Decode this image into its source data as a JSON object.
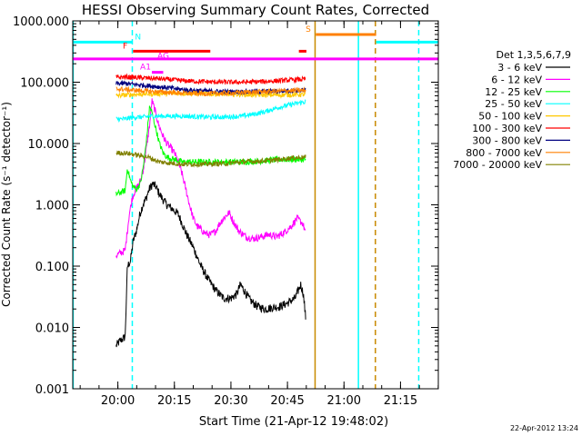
{
  "chart_data": {
    "type": "line",
    "title": "HESSI Observing Summary Count Rates, Corrected",
    "xlabel": "Start Time (21-Apr-12 19:48:02)",
    "ylabel": "Corrected Count Rate (s⁻¹ detector⁻¹)",
    "y_scale": "log",
    "ylim": [
      0.001,
      1000
    ],
    "y_ticks": [
      0.001,
      0.01,
      0.1,
      1,
      10,
      100,
      1000
    ],
    "y_tick_labels": [
      "0.001",
      "0.010",
      "0.100",
      "1.000",
      "10.000",
      "100.000",
      "1000.000"
    ],
    "x_unit": "minutes after 19:48:02",
    "xlim": [
      0,
      97
    ],
    "x_ticks": [
      11.97,
      26.97,
      41.97,
      56.97,
      71.97,
      86.97
    ],
    "x_tick_labels": [
      "20:00",
      "20:15",
      "20:30",
      "20:45",
      "21:00",
      "21:15"
    ],
    "legend_title": "Det 1,3,5,6,7,9",
    "legend_position": "right",
    "data_start": 11.5,
    "data_end": 61.8,
    "series": [
      {
        "name": "3 - 6 keV",
        "color": "#000000",
        "points": [
          [
            11.5,
            0.005
          ],
          [
            12.5,
            0.006
          ],
          [
            13.9,
            0.007
          ],
          [
            14.5,
            0.1
          ],
          [
            15.3,
            0.12
          ],
          [
            16,
            0.25
          ],
          [
            17,
            0.4
          ],
          [
            17.8,
            0.7
          ],
          [
            18.6,
            1.0
          ],
          [
            19.5,
            1.3
          ],
          [
            20.3,
            1.8
          ],
          [
            21.2,
            2.2
          ],
          [
            22,
            2.0
          ],
          [
            23,
            1.5
          ],
          [
            24,
            1.2
          ],
          [
            25,
            1.0
          ],
          [
            26,
            0.9
          ],
          [
            27,
            0.8
          ],
          [
            28,
            0.7
          ],
          [
            29,
            0.5
          ],
          [
            30,
            0.35
          ],
          [
            32,
            0.2
          ],
          [
            34,
            0.1
          ],
          [
            36,
            0.06
          ],
          [
            38,
            0.04
          ],
          [
            40,
            0.03
          ],
          [
            42,
            0.03
          ],
          [
            43.5,
            0.035
          ],
          [
            44.5,
            0.05
          ],
          [
            45.5,
            0.04
          ],
          [
            47,
            0.028
          ],
          [
            49,
            0.022
          ],
          [
            51,
            0.02
          ],
          [
            53,
            0.021
          ],
          [
            55,
            0.022
          ],
          [
            57,
            0.025
          ],
          [
            59,
            0.03
          ],
          [
            60.5,
            0.05
          ],
          [
            61.2,
            0.035
          ],
          [
            61.8,
            0.014
          ]
        ]
      },
      {
        "name": "6 - 12 keV",
        "color": "#ff00ff",
        "points": [
          [
            11.5,
            0.15
          ],
          [
            13.9,
            0.18
          ],
          [
            14.3,
            0.3
          ],
          [
            15,
            0.7
          ],
          [
            15.8,
            1.3
          ],
          [
            16.5,
            1.7
          ],
          [
            17.2,
            2.0
          ],
          [
            18,
            2.5
          ],
          [
            18.8,
            4
          ],
          [
            19.6,
            9
          ],
          [
            20.4,
            20
          ],
          [
            21,
            50
          ],
          [
            21.8,
            35
          ],
          [
            22.8,
            20
          ],
          [
            24,
            13
          ],
          [
            25,
            10
          ],
          [
            26,
            8.5
          ],
          [
            27,
            7
          ],
          [
            28,
            5
          ],
          [
            29,
            3.2
          ],
          [
            30,
            1.8
          ],
          [
            31,
            1.0
          ],
          [
            32,
            0.6
          ],
          [
            33,
            0.45
          ],
          [
            35,
            0.35
          ],
          [
            36.5,
            0.32
          ],
          [
            38,
            0.38
          ],
          [
            39,
            0.5
          ],
          [
            40,
            0.6
          ],
          [
            41.5,
            0.75
          ],
          [
            42.5,
            0.55
          ],
          [
            44,
            0.38
          ],
          [
            46,
            0.3
          ],
          [
            48,
            0.28
          ],
          [
            50,
            0.3
          ],
          [
            52,
            0.33
          ],
          [
            54,
            0.3
          ],
          [
            56,
            0.35
          ],
          [
            58,
            0.45
          ],
          [
            59.5,
            0.6
          ],
          [
            61,
            0.5
          ],
          [
            61.8,
            0.35
          ]
        ]
      },
      {
        "name": "12 - 25 keV",
        "color": "#00ff00",
        "points": [
          [
            11.5,
            1.5
          ],
          [
            13.9,
            1.7
          ],
          [
            14.5,
            4
          ],
          [
            15.3,
            2.5
          ],
          [
            16,
            2.0
          ],
          [
            17,
            1.8
          ],
          [
            18,
            2.3
          ],
          [
            18.8,
            4.5
          ],
          [
            19.6,
            12
          ],
          [
            20.4,
            40
          ],
          [
            21,
            32
          ],
          [
            22,
            18
          ],
          [
            23,
            10
          ],
          [
            24,
            7
          ],
          [
            25,
            6
          ],
          [
            27,
            5.5
          ],
          [
            29,
            5
          ],
          [
            31,
            5
          ],
          [
            35,
            5
          ],
          [
            40,
            5
          ],
          [
            45,
            5
          ],
          [
            50,
            5.2
          ],
          [
            55,
            5.5
          ],
          [
            61.8,
            5.5
          ]
        ]
      },
      {
        "name": "25 - 50 keV",
        "color": "#00ffff",
        "points": [
          [
            11.5,
            25
          ],
          [
            13.9,
            25
          ],
          [
            15,
            26
          ],
          [
            17,
            27
          ],
          [
            19,
            27
          ],
          [
            21,
            28
          ],
          [
            25,
            28
          ],
          [
            30,
            28
          ],
          [
            35,
            27
          ],
          [
            40,
            27
          ],
          [
            45,
            28
          ],
          [
            48,
            30
          ],
          [
            51,
            33
          ],
          [
            54,
            38
          ],
          [
            57,
            42
          ],
          [
            60,
            46
          ],
          [
            61.8,
            48
          ]
        ]
      },
      {
        "name": "50 - 100 keV",
        "color": "#ffc800",
        "points": [
          [
            11.5,
            60
          ],
          [
            14,
            62
          ],
          [
            18,
            64
          ],
          [
            22,
            65
          ],
          [
            26,
            66
          ],
          [
            30,
            66
          ],
          [
            35,
            65
          ],
          [
            40,
            64
          ],
          [
            45,
            63
          ],
          [
            50,
            62
          ],
          [
            55,
            62
          ],
          [
            61.8,
            63
          ]
        ]
      },
      {
        "name": "100 - 300 keV",
        "color": "#ff0000",
        "points": [
          [
            11.5,
            120
          ],
          [
            14,
            122
          ],
          [
            18,
            118
          ],
          [
            22,
            115
          ],
          [
            26,
            110
          ],
          [
            30,
            105
          ],
          [
            35,
            102
          ],
          [
            40,
            100
          ],
          [
            45,
            100
          ],
          [
            50,
            102
          ],
          [
            55,
            106
          ],
          [
            61.8,
            112
          ]
        ]
      },
      {
        "name": "300 - 800 keV",
        "color": "#000080",
        "points": [
          [
            11.5,
            95
          ],
          [
            14,
            95
          ],
          [
            18,
            90
          ],
          [
            22,
            85
          ],
          [
            26,
            80
          ],
          [
            30,
            75
          ],
          [
            35,
            72
          ],
          [
            40,
            70
          ],
          [
            45,
            70
          ],
          [
            50,
            70
          ],
          [
            55,
            72
          ],
          [
            61.8,
            74
          ]
        ]
      },
      {
        "name": "800 - 7000 keV",
        "color": "#ff8000",
        "points": [
          [
            11.5,
            78
          ],
          [
            14,
            76
          ],
          [
            18,
            73
          ],
          [
            22,
            70
          ],
          [
            26,
            68
          ],
          [
            30,
            66
          ],
          [
            35,
            65
          ],
          [
            40,
            66
          ],
          [
            45,
            68
          ],
          [
            50,
            70
          ],
          [
            55,
            72
          ],
          [
            61.8,
            74
          ]
        ]
      },
      {
        "name": "7000 - 20000 keV",
        "color": "#808000",
        "points": [
          [
            11.5,
            7
          ],
          [
            14,
            7
          ],
          [
            17,
            6.5
          ],
          [
            20,
            6
          ],
          [
            23,
            5
          ],
          [
            26,
            4.8
          ],
          [
            29,
            4.6
          ],
          [
            32,
            4.6
          ],
          [
            35,
            4.6
          ],
          [
            40,
            4.7
          ],
          [
            45,
            5
          ],
          [
            50,
            5.2
          ],
          [
            55,
            5.5
          ],
          [
            58,
            5.8
          ],
          [
            61.8,
            6
          ]
        ]
      }
    ],
    "vertical_lines": [
      {
        "x": 0.1,
        "color": "#00ffff",
        "style": "solid"
      },
      {
        "x": 15.8,
        "color": "#00ffff",
        "style": "dashed"
      },
      {
        "x": 64.3,
        "color": "#c88a00",
        "style": "solid"
      },
      {
        "x": 75.8,
        "color": "#00ffff",
        "style": "solid"
      },
      {
        "x": 80.3,
        "color": "#c88a00",
        "style": "dashed"
      },
      {
        "x": 91.8,
        "color": "#00ffff",
        "style": "dashed"
      }
    ],
    "flag_bars": [
      {
        "label": "N",
        "color": "#00ffff",
        "ranges": [
          [
            0,
            15.8
          ],
          [
            80.5,
            97
          ]
        ],
        "y": 450,
        "label_x": 17.3
      },
      {
        "label": "S",
        "color": "#ff8000",
        "ranges": [
          [
            64.5,
            80.5
          ]
        ],
        "y": 600,
        "label_x": 62.5
      },
      {
        "label": "F",
        "color": "#ff0000",
        "ranges": [
          [
            16,
            36.5
          ],
          [
            60,
            62
          ]
        ],
        "y": 320,
        "label_x": 13.9
      },
      {
        "label": "AG",
        "color": "#ff00ff",
        "ranges": [],
        "y": 220,
        "label_x": 24
      },
      {
        "label": "A1",
        "color": "#ff00ff",
        "ranges": [
          [
            21,
            24
          ]
        ],
        "y": 145,
        "label_x": 19.3
      },
      {
        "label": "",
        "color": "#ff00ff",
        "ranges": [
          [
            0,
            97
          ]
        ],
        "y": 240,
        "label_x": 0
      }
    ]
  },
  "footer": {
    "date_stamp": "22-Apr-2012 13:24"
  }
}
